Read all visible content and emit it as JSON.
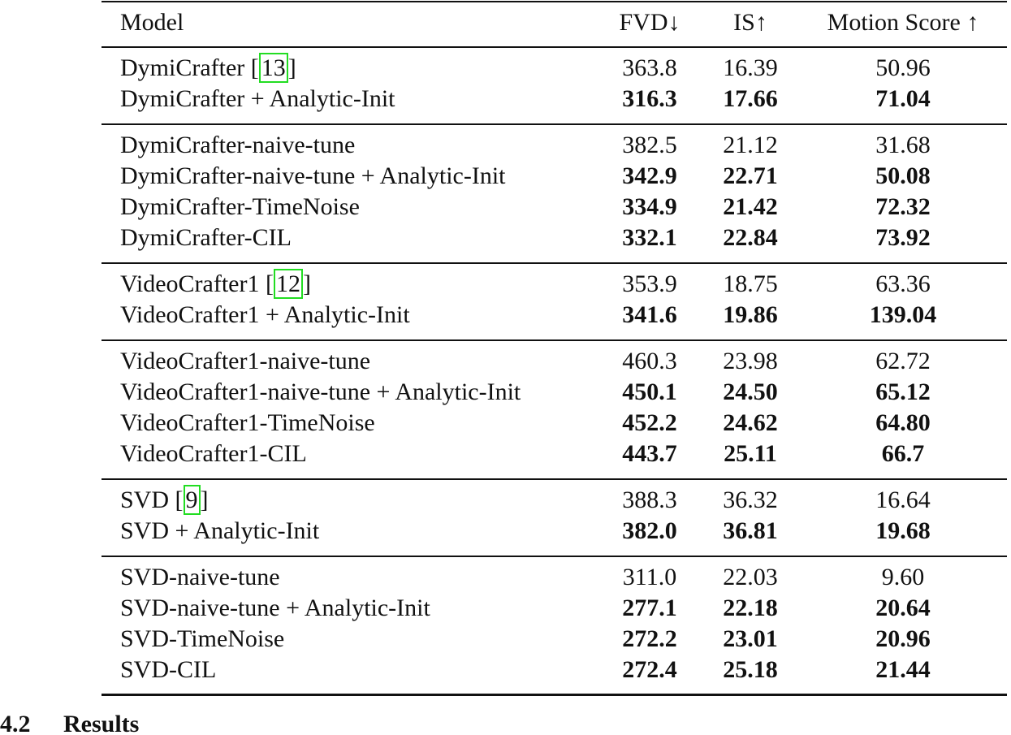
{
  "table": {
    "header": [
      "Model",
      "FVD↓",
      "IS↑",
      "Motion Score ↑"
    ],
    "groups": [
      {
        "rows": [
          {
            "model": [
              {
                "text": "DymiCrafter ["
              },
              {
                "text": "13",
                "cite": true
              },
              {
                "text": "]"
              }
            ],
            "cells": [
              "363.8",
              "16.39",
              "50.96"
            ],
            "bold": false
          },
          {
            "model": [
              {
                "text": "DymiCrafter + Analytic-Init"
              }
            ],
            "cells": [
              "316.3",
              "17.66",
              "71.04"
            ],
            "bold": true
          }
        ]
      },
      {
        "rows": [
          {
            "model": [
              {
                "text": "DymiCrafter-naive-tune"
              }
            ],
            "cells": [
              "382.5",
              "21.12",
              "31.68"
            ],
            "bold": false
          },
          {
            "model": [
              {
                "text": "DymiCrafter-naive-tune + Analytic-Init"
              }
            ],
            "cells": [
              "342.9",
              "22.71",
              "50.08"
            ],
            "bold": true
          },
          {
            "model": [
              {
                "text": "DymiCrafter-TimeNoise"
              }
            ],
            "cells": [
              "334.9",
              "21.42",
              "72.32"
            ],
            "bold": true
          },
          {
            "model": [
              {
                "text": "DymiCrafter-CIL"
              }
            ],
            "cells": [
              "332.1",
              "22.84",
              "73.92"
            ],
            "bold": true
          }
        ]
      },
      {
        "rows": [
          {
            "model": [
              {
                "text": "VideoCrafter1 ["
              },
              {
                "text": "12",
                "cite": true
              },
              {
                "text": "]"
              }
            ],
            "cells": [
              "353.9",
              "18.75",
              "63.36"
            ],
            "bold": false
          },
          {
            "model": [
              {
                "text": "VideoCrafter1 + Analytic-Init"
              }
            ],
            "cells": [
              "341.6",
              "19.86",
              "139.04"
            ],
            "bold": true
          }
        ]
      },
      {
        "rows": [
          {
            "model": [
              {
                "text": "VideoCrafter1-naive-tune"
              }
            ],
            "cells": [
              "460.3",
              "23.98",
              "62.72"
            ],
            "bold": false
          },
          {
            "model": [
              {
                "text": "VideoCrafter1-naive-tune + Analytic-Init"
              }
            ],
            "cells": [
              "450.1",
              "24.50",
              "65.12"
            ],
            "bold": true
          },
          {
            "model": [
              {
                "text": "VideoCrafter1-TimeNoise"
              }
            ],
            "cells": [
              "452.2",
              "24.62",
              "64.80"
            ],
            "bold": true
          },
          {
            "model": [
              {
                "text": "VideoCrafter1-CIL"
              }
            ],
            "cells": [
              "443.7",
              "25.11",
              "66.7"
            ],
            "bold": true
          }
        ]
      },
      {
        "rows": [
          {
            "model": [
              {
                "text": "SVD ["
              },
              {
                "text": "9",
                "cite": true
              },
              {
                "text": "]"
              }
            ],
            "cells": [
              "388.3",
              "36.32",
              "16.64"
            ],
            "bold": false
          },
          {
            "model": [
              {
                "text": "SVD + Analytic-Init"
              }
            ],
            "cells": [
              "382.0",
              "36.81",
              "19.68"
            ],
            "bold": true
          }
        ]
      },
      {
        "rows": [
          {
            "model": [
              {
                "text": "SVD-naive-tune"
              }
            ],
            "cells": [
              "311.0",
              "22.03",
              "9.60"
            ],
            "bold": false
          },
          {
            "model": [
              {
                "text": "SVD-naive-tune + Analytic-Init"
              }
            ],
            "cells": [
              "277.1",
              "22.18",
              "20.64"
            ],
            "bold": true
          },
          {
            "model": [
              {
                "text": "SVD-TimeNoise"
              }
            ],
            "cells": [
              "272.2",
              "23.01",
              "20.96"
            ],
            "bold": true
          },
          {
            "model": [
              {
                "text": "SVD-CIL"
              }
            ],
            "cells": [
              "272.4",
              "25.18",
              "21.44"
            ],
            "bold": true
          }
        ]
      }
    ]
  },
  "section": {
    "number": "4.2",
    "title": "Results"
  }
}
